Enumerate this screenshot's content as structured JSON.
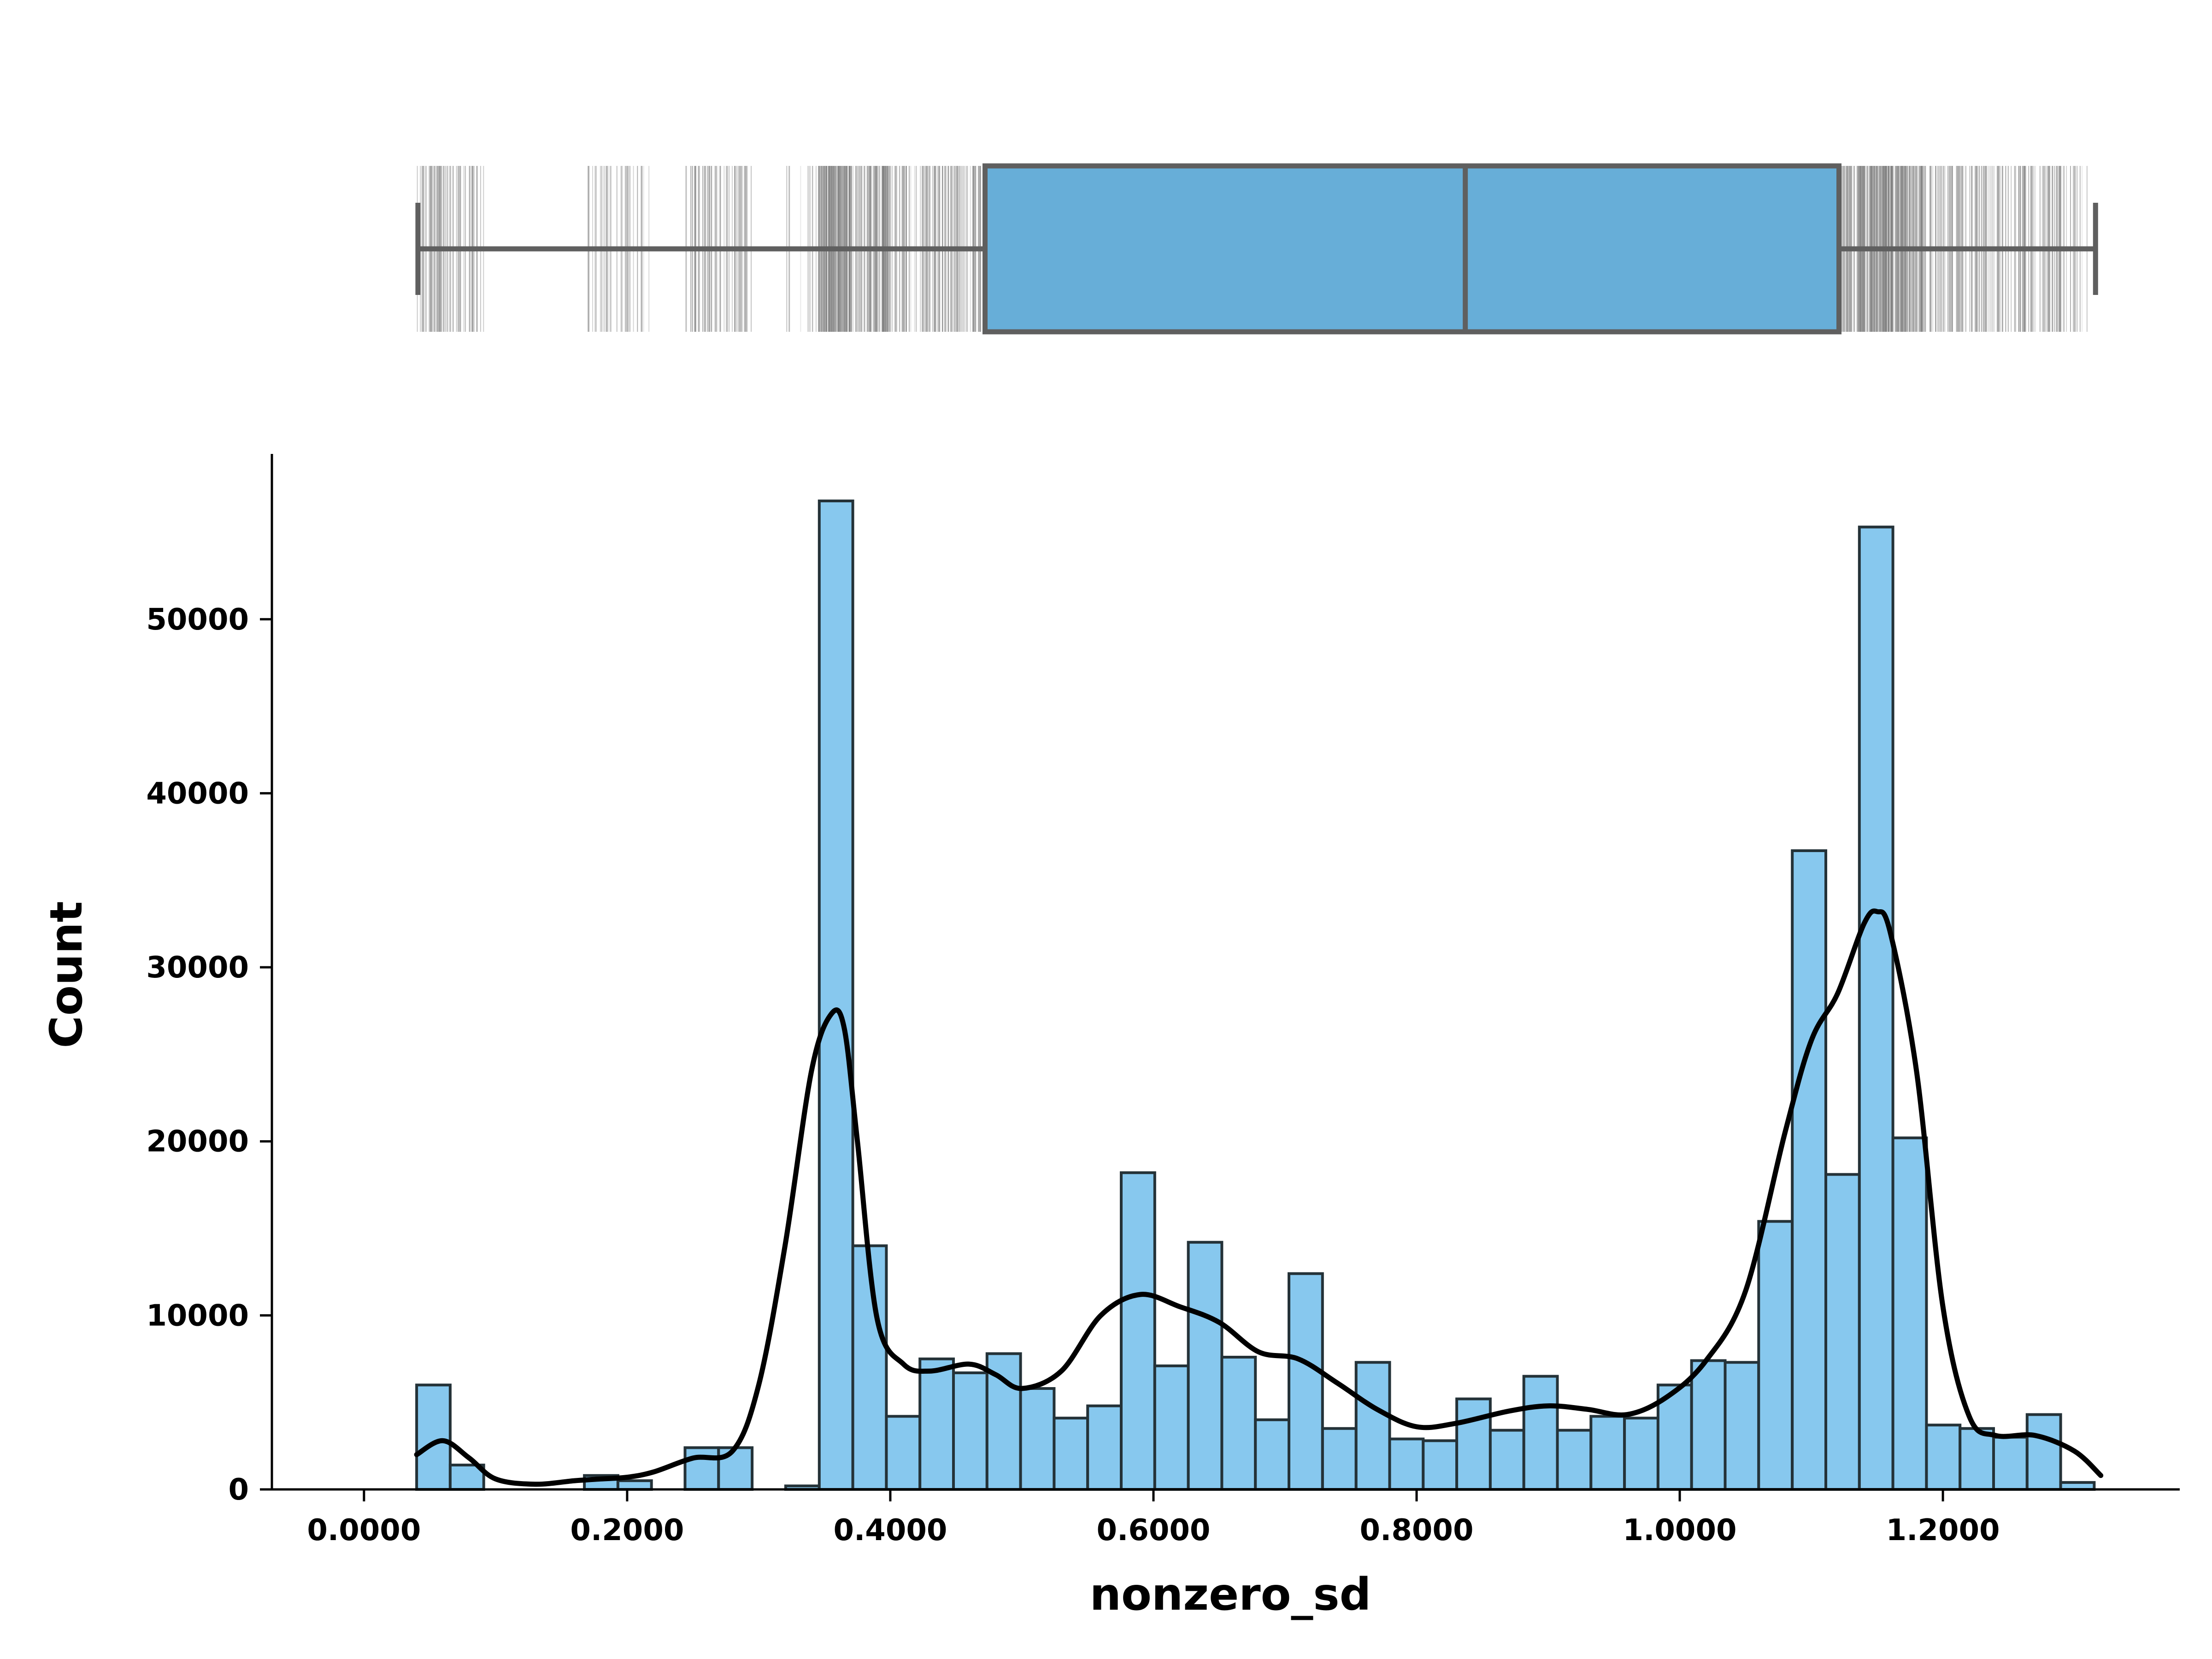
{
  "chart_data": {
    "type": "bar",
    "subtype": "histogram with kde and marginal boxplot",
    "xlabel": "nonzero_sd",
    "ylabel": "Count",
    "xlim": [
      -0.07,
      1.38
    ],
    "ylim": [
      0,
      59500
    ],
    "x_ticks": [
      {
        "value": 0.0,
        "label": "0.0000"
      },
      {
        "value": 0.2,
        "label": "0.2000"
      },
      {
        "value": 0.4,
        "label": "0.4000"
      },
      {
        "value": 0.6,
        "label": "0.6000"
      },
      {
        "value": 0.8,
        "label": "0.8000"
      },
      {
        "value": 1.0,
        "label": "1.0000"
      },
      {
        "value": 1.2,
        "label": "1.2000"
      }
    ],
    "y_ticks": [
      {
        "value": 0,
        "label": "0"
      },
      {
        "value": 10000,
        "label": "10000"
      },
      {
        "value": 20000,
        "label": "20000"
      },
      {
        "value": 30000,
        "label": "30000"
      },
      {
        "value": 40000,
        "label": "40000"
      },
      {
        "value": 50000,
        "label": "50000"
      }
    ],
    "bin_start": 0.04,
    "bin_width": 0.0255,
    "counts": [
      6000,
      1400,
      0,
      0,
      0,
      800,
      500,
      0,
      2400,
      2400,
      0,
      200,
      56800,
      14000,
      4200,
      7500,
      6700,
      7800,
      5800,
      4100,
      4800,
      18200,
      7100,
      14200,
      7600,
      4000,
      12400,
      3500,
      7300,
      2900,
      2800,
      5200,
      3400,
      6500,
      3400,
      4200,
      4100,
      6000,
      7400,
      7300,
      15400,
      36700,
      18100,
      55300,
      20200,
      3700,
      3500,
      3000,
      4300,
      400
    ],
    "kde": {
      "x": [
        0.04,
        0.06,
        0.08,
        0.1,
        0.13,
        0.16,
        0.18,
        0.2,
        0.22,
        0.25,
        0.28,
        0.3,
        0.32,
        0.34,
        0.355,
        0.365,
        0.375,
        0.39,
        0.41,
        0.43,
        0.46,
        0.48,
        0.5,
        0.53,
        0.56,
        0.59,
        0.62,
        0.65,
        0.68,
        0.71,
        0.74,
        0.77,
        0.8,
        0.83,
        0.87,
        0.9,
        0.93,
        0.96,
        0.99,
        1.02,
        1.05,
        1.08,
        1.1,
        1.12,
        1.14,
        1.15,
        1.16,
        1.18,
        1.2,
        1.22,
        1.24,
        1.27,
        1.3,
        1.32
      ],
      "y": [
        2000,
        2800,
        1800,
        600,
        300,
        500,
        600,
        700,
        1000,
        1800,
        2200,
        6000,
        14000,
        24000,
        27300,
        26500,
        20000,
        9800,
        7200,
        6800,
        7200,
        6600,
        5800,
        6800,
        10000,
        11200,
        10500,
        9600,
        7900,
        7500,
        6100,
        4600,
        3600,
        3800,
        4500,
        4800,
        4600,
        4300,
        5300,
        7400,
        11400,
        20500,
        25800,
        28500,
        32500,
        33200,
        32000,
        24000,
        10500,
        4200,
        3100,
        3100,
        2200,
        800
      ]
    },
    "boxplot": {
      "whisker_low": 0.041,
      "q1": 0.472,
      "median": 0.837,
      "q3": 1.121,
      "whisker_high": 1.316
    },
    "colors": {
      "bar_fill": "#87c8ee",
      "bar_edge": "#243238",
      "box_fill": "#67aed8",
      "box_edge": "#5f5f5f",
      "kde_line": "#000000",
      "rug": "#7a7a7a"
    }
  }
}
